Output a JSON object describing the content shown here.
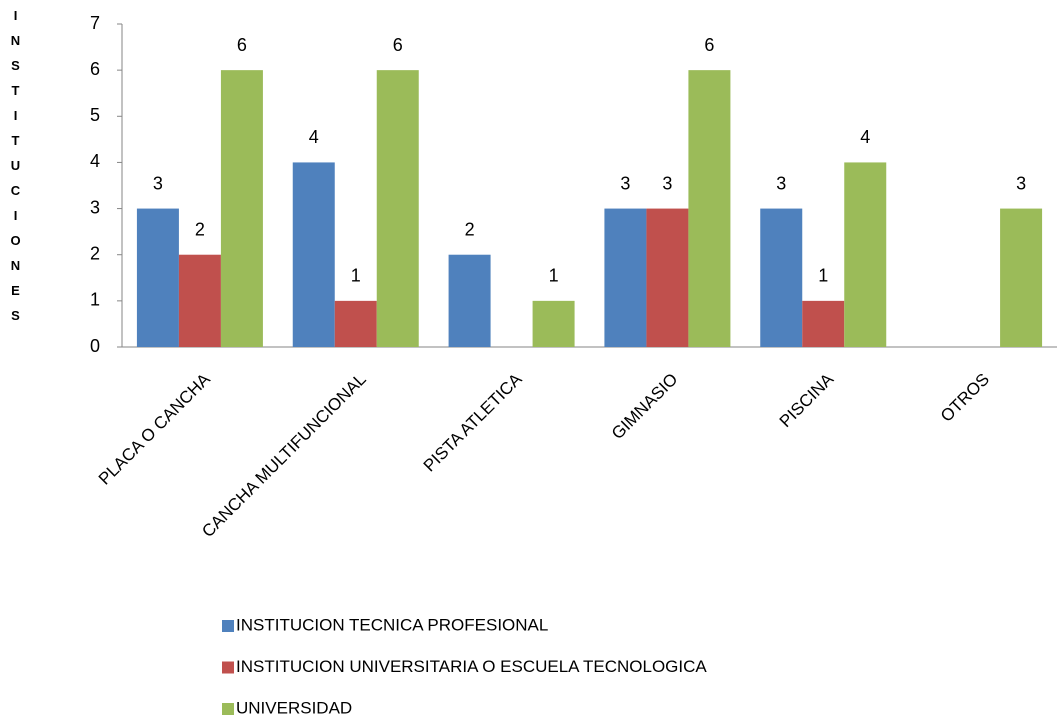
{
  "chart_data": {
    "type": "bar",
    "y_label": "INSTITUCIONES",
    "categories": [
      "PLACA O CANCHA",
      "CANCHA MULTIFUNCIONAL",
      "PISTA ATLETICA",
      "GIMNASIO",
      "PISCINA",
      "OTROS"
    ],
    "series": [
      {
        "name": "INSTITUCION TECNICA PROFESIONAL",
        "color": "#4f81bd",
        "values": [
          3,
          4,
          2,
          3,
          3,
          null
        ]
      },
      {
        "name": "INSTITUCION UNIVERSITARIA O ESCUELA TECNOLOGICA",
        "color": "#c0504d",
        "values": [
          2,
          1,
          null,
          3,
          1,
          null
        ]
      },
      {
        "name": "UNIVERSIDAD",
        "color": "#9bbb59",
        "values": [
          6,
          6,
          1,
          6,
          4,
          3
        ]
      }
    ],
    "ylim": [
      0,
      7
    ],
    "yticks": [
      0,
      1,
      2,
      3,
      4,
      5,
      6,
      7
    ],
    "grid": false,
    "legend": "bottom"
  }
}
